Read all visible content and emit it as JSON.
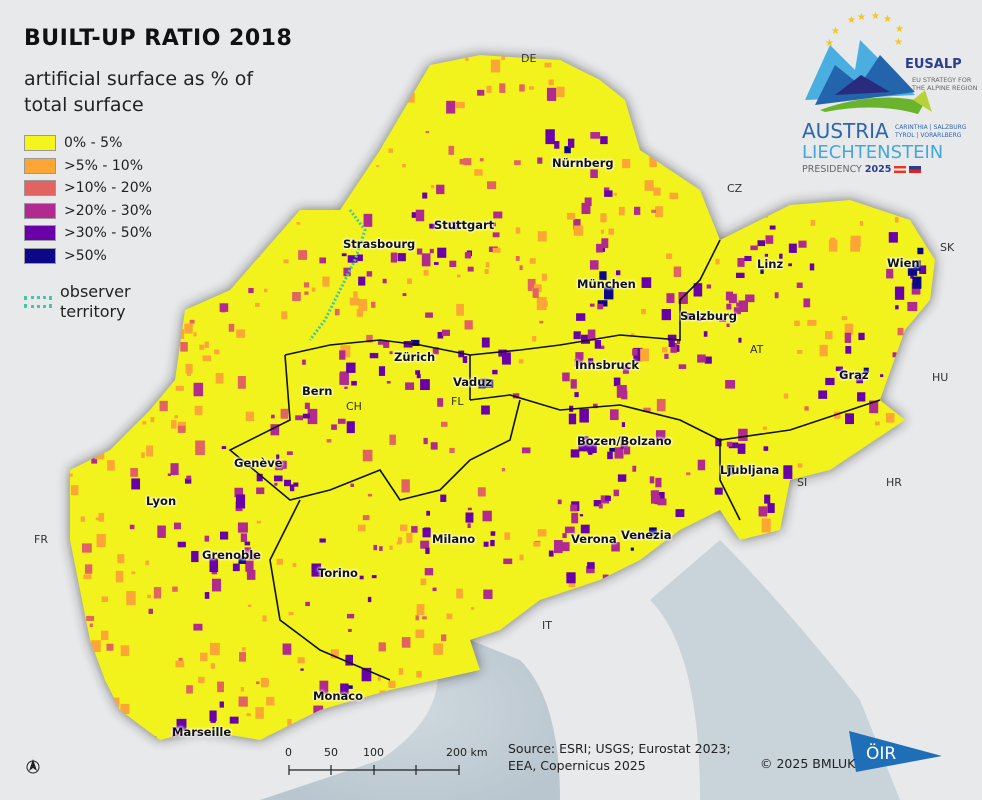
{
  "title": "BUILT-UP RATIO 2018",
  "subtitle": "artificial surface as % of total surface",
  "legend": [
    {
      "label": "0% - 5%",
      "color": "#f5f51e"
    },
    {
      "label": ">5% - 10%",
      "color": "#fca636"
    },
    {
      "label": ">10% - 20%",
      "color": "#e16462"
    },
    {
      "label": ">20% - 30%",
      "color": "#b12a90"
    },
    {
      "label": ">30% - 50%",
      "color": "#6a00a8"
    },
    {
      "label": ">50%",
      "color": "#0d0887"
    }
  ],
  "observer": {
    "label": "observer territory",
    "color": "#3fc9a8"
  },
  "cities": [
    "Nürnberg",
    "Stuttgart",
    "Strasbourg",
    "München",
    "Linz",
    "Wien",
    "Salzburg",
    "Zürich",
    "Vaduz",
    "Innsbruck",
    "Bern",
    "Graz",
    "Genève",
    "Bozen/Bolzano",
    "Ljubljana",
    "Lyon",
    "Milano",
    "Verona",
    "Venezia",
    "Grenoble",
    "Torino",
    "Monaco",
    "Marseille"
  ],
  "countries": [
    "DE",
    "CZ",
    "SK",
    "AT",
    "HU",
    "CH",
    "FL",
    "SI",
    "HR",
    "FR",
    "IT"
  ],
  "scale": {
    "ticks": [
      "0",
      "50",
      "100",
      "200 km"
    ]
  },
  "source": "Source: ESRI; USGS; Eurostat 2023; EEA, Copernicus 2025",
  "copyright": "© 2025 BMLUK",
  "logo": {
    "eusalp": "EUSALP",
    "eusalp_sub": "EU STRATEGY FOR THE ALPINE REGION",
    "austria": "AUSTRIA",
    "regions": "CARINTHIA | SALZBURG TYROL | VORARLBERG",
    "liechtenstein": "LIECHTENSTEIN",
    "presidency": "PRESIDENCY",
    "year": "2025"
  },
  "oir_logo": "ÖIR"
}
